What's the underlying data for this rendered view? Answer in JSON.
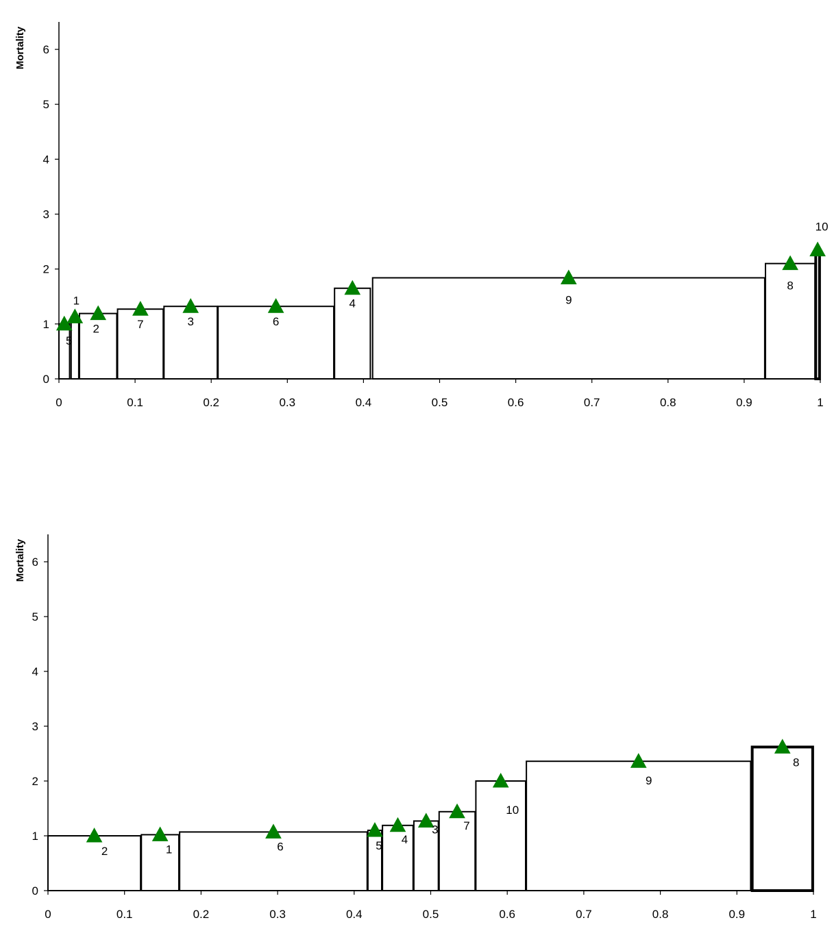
{
  "chart_data": [
    {
      "type": "bar",
      "ylabel": "Mortality",
      "xlim": [
        0,
        1
      ],
      "ylim": [
        0,
        6.5
      ],
      "xticks": [
        "0",
        "0.1",
        "0.2",
        "0.3",
        "0.4",
        "0.5",
        "0.6",
        "0.7",
        "0.8",
        "0.9",
        "1"
      ],
      "yticks": [
        "0",
        "1",
        "2",
        "3",
        "4",
        "5",
        "6"
      ],
      "bars": [
        {
          "label": "5",
          "x0": 0.0,
          "x1": 0.014,
          "value": 1.0
        },
        {
          "label": "1",
          "x0": 0.016,
          "x1": 0.026,
          "value": 1.13
        },
        {
          "label": "2",
          "x0": 0.027,
          "x1": 0.076,
          "value": 1.19
        },
        {
          "label": "7",
          "x0": 0.077,
          "x1": 0.137,
          "value": 1.27
        },
        {
          "label": "3",
          "x0": 0.138,
          "x1": 0.208,
          "value": 1.32
        },
        {
          "label": "6",
          "x0": 0.209,
          "x1": 0.361,
          "value": 1.32
        },
        {
          "label": "4",
          "x0": 0.362,
          "x1": 0.409,
          "value": 1.65
        },
        {
          "label": "9",
          "x0": 0.412,
          "x1": 0.927,
          "value": 1.84
        },
        {
          "label": "8",
          "x0": 0.928,
          "x1": 0.993,
          "value": 2.1
        },
        {
          "label": "10",
          "x0": 0.994,
          "x1": 0.999,
          "value": 2.35
        }
      ],
      "marker_color": "#008000"
    },
    {
      "type": "bar",
      "ylabel": "Mortality",
      "xlim": [
        0,
        1
      ],
      "ylim": [
        0,
        6.5
      ],
      "xticks": [
        "0",
        "0.1",
        "0.2",
        "0.3",
        "0.4",
        "0.5",
        "0.6",
        "0.7",
        "0.8",
        "0.9",
        "1"
      ],
      "yticks": [
        "0",
        "1",
        "2",
        "3",
        "4",
        "5",
        "6"
      ],
      "bars": [
        {
          "label": "2",
          "x0": 0.0,
          "x1": 0.121,
          "value": 1.0
        },
        {
          "label": "1",
          "x0": 0.122,
          "x1": 0.171,
          "value": 1.02
        },
        {
          "label": "6",
          "x0": 0.172,
          "x1": 0.417,
          "value": 1.07
        },
        {
          "label": "5",
          "x0": 0.418,
          "x1": 0.436,
          "value": 1.1
        },
        {
          "label": "4",
          "x0": 0.437,
          "x1": 0.477,
          "value": 1.19
        },
        {
          "label": "3",
          "x0": 0.478,
          "x1": 0.51,
          "value": 1.27
        },
        {
          "label": "7",
          "x0": 0.511,
          "x1": 0.558,
          "value": 1.44
        },
        {
          "label": "10",
          "x0": 0.559,
          "x1": 0.624,
          "value": 2.0
        },
        {
          "label": "9",
          "x0": 0.625,
          "x1": 0.918,
          "value": 2.36
        },
        {
          "label": "8",
          "x0": 0.92,
          "x1": 0.999,
          "value": 2.62
        }
      ],
      "marker_color": "#008000"
    }
  ]
}
